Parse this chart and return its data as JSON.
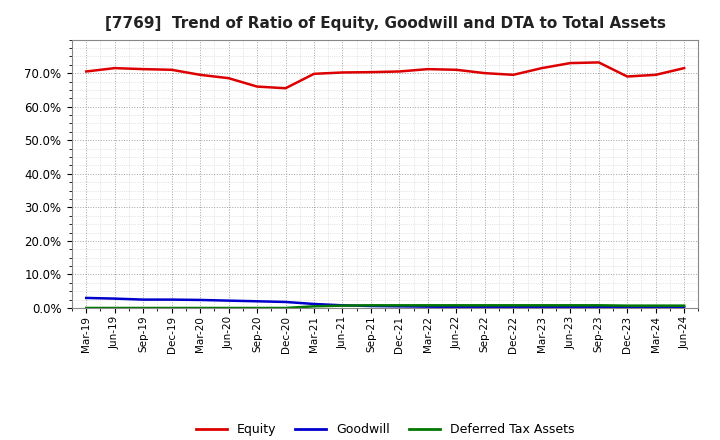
{
  "title": "[7769]  Trend of Ratio of Equity, Goodwill and DTA to Total Assets",
  "x_labels": [
    "Mar-19",
    "Jun-19",
    "Sep-19",
    "Dec-19",
    "Mar-20",
    "Jun-20",
    "Sep-20",
    "Dec-20",
    "Mar-21",
    "Jun-21",
    "Sep-21",
    "Dec-21",
    "Mar-22",
    "Jun-22",
    "Sep-22",
    "Dec-22",
    "Mar-23",
    "Jun-23",
    "Sep-23",
    "Dec-23",
    "Mar-24",
    "Jun-24"
  ],
  "equity": [
    70.5,
    71.5,
    71.2,
    71.0,
    69.5,
    68.5,
    66.0,
    65.5,
    69.8,
    70.2,
    70.3,
    70.5,
    71.2,
    71.0,
    70.0,
    69.5,
    71.5,
    73.0,
    73.2,
    69.0,
    69.5,
    71.5
  ],
  "goodwill": [
    3.0,
    2.8,
    2.5,
    2.5,
    2.4,
    2.2,
    2.0,
    1.8,
    1.2,
    0.8,
    0.6,
    0.5,
    0.4,
    0.3,
    0.3,
    0.3,
    0.3,
    0.3,
    0.3,
    0.2,
    0.2,
    0.2
  ],
  "dta": [
    0.0,
    0.0,
    0.0,
    0.0,
    0.0,
    0.0,
    0.0,
    0.0,
    0.5,
    0.7,
    0.8,
    0.8,
    0.8,
    0.8,
    0.8,
    0.8,
    0.8,
    0.8,
    0.8,
    0.7,
    0.7,
    0.7
  ],
  "equity_color": "#dd0000",
  "goodwill_color": "#0000cc",
  "dta_color": "#007700",
  "background_color": "#ffffff",
  "plot_bg_color": "#ffffff",
  "major_grid_color": "#999999",
  "minor_grid_color": "#bbbbbb",
  "ylim": [
    0,
    80
  ],
  "yticks": [
    0,
    10,
    20,
    30,
    40,
    50,
    60,
    70
  ],
  "legend_labels": [
    "Equity",
    "Goodwill",
    "Deferred Tax Assets"
  ]
}
